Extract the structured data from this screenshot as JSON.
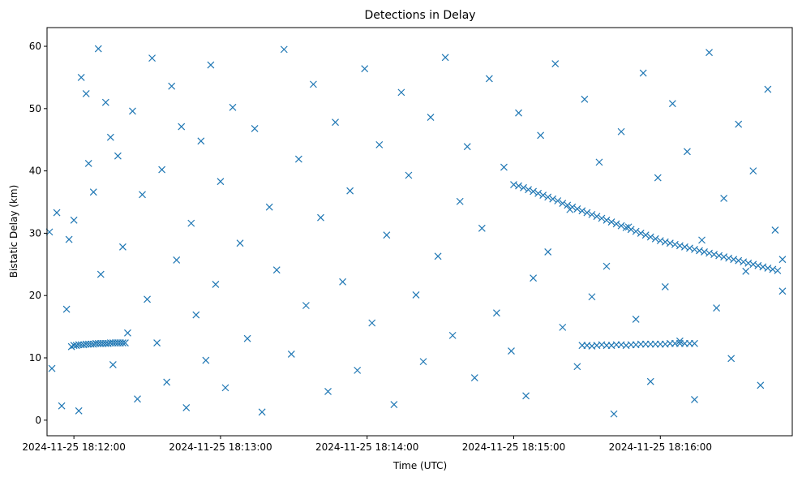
{
  "chart_data": {
    "type": "scatter",
    "title": "Detections in Delay",
    "xlabel": "Time (UTC)",
    "ylabel": "Bistatic Delay (km)",
    "marker": "x",
    "color": "#1f77b4",
    "grid": false,
    "xlim": [
      "2024-11-25 18:11:49",
      "2024-11-25 18:16:54"
    ],
    "ylim": [
      -2.5,
      63
    ],
    "x_ticks": [
      "2024-11-25 18:12:00",
      "2024-11-25 18:13:00",
      "2024-11-25 18:14:00",
      "2024-11-25 18:15:00",
      "2024-11-25 18:16:00"
    ],
    "x_tick_labels": [
      "2024-11-25 18:12:00",
      "2024-11-25 18:13:00",
      "2024-11-25 18:14:00",
      "2024-11-25 18:15:00",
      "2024-11-25 18:16:00"
    ],
    "y_ticks": [
      0,
      10,
      20,
      30,
      40,
      50,
      60
    ],
    "y_tick_labels": [
      "0",
      "10",
      "20",
      "30",
      "40",
      "50",
      "60"
    ],
    "track_1": {
      "x": [
        "18:15:00",
        "18:15:02",
        "18:15:04",
        "18:15:06",
        "18:15:08",
        "18:15:10",
        "18:15:12",
        "18:15:14",
        "18:15:16",
        "18:15:18",
        "18:15:20",
        "18:15:22",
        "18:15:24",
        "18:15:26",
        "18:15:28",
        "18:15:30",
        "18:15:32",
        "18:15:34",
        "18:15:36",
        "18:15:38",
        "18:15:40",
        "18:15:42",
        "18:15:44",
        "18:15:46",
        "18:15:48",
        "18:15:50",
        "18:15:52",
        "18:15:54",
        "18:15:56",
        "18:15:58",
        "18:16:00",
        "18:16:02",
        "18:16:04",
        "18:16:06",
        "18:16:08",
        "18:16:10",
        "18:16:12",
        "18:16:14",
        "18:16:16",
        "18:16:18",
        "18:16:20",
        "18:16:22",
        "18:16:24",
        "18:16:26",
        "18:16:28",
        "18:16:30",
        "18:16:32",
        "18:16:34",
        "18:16:36",
        "18:16:38",
        "18:16:40",
        "18:16:42",
        "18:16:44",
        "18:16:46",
        "18:16:48",
        "18:16:50"
      ],
      "y": [
        37.8,
        37.6,
        37.3,
        37.0,
        36.7,
        36.4,
        36.1,
        35.8,
        35.5,
        35.2,
        34.8,
        34.5,
        34.2,
        33.9,
        33.6,
        33.3,
        33.0,
        32.7,
        32.4,
        32.1,
        31.8,
        31.5,
        31.2,
        30.9,
        30.6,
        30.3,
        30.0,
        29.7,
        29.4,
        29.1,
        28.8,
        28.6,
        28.4,
        28.2,
        28.0,
        27.8,
        27.6,
        27.4,
        27.2,
        27.0,
        26.8,
        26.6,
        26.4,
        26.2,
        26.0,
        25.8,
        25.6,
        25.4,
        25.2,
        25.0,
        24.8,
        24.6,
        24.4,
        24.2,
        24.0,
        25.8
      ]
    },
    "track_2": {
      "x": [
        "18:11:59",
        "18:12:00",
        "18:12:01",
        "18:12:02",
        "18:12:03",
        "18:12:04",
        "18:12:05",
        "18:12:06",
        "18:12:07",
        "18:12:08",
        "18:12:09",
        "18:12:10",
        "18:12:11",
        "18:12:12",
        "18:12:13",
        "18:12:14",
        "18:12:15",
        "18:12:16",
        "18:12:17",
        "18:12:18",
        "18:12:19",
        "18:12:20",
        "18:12:21"
      ],
      "y": [
        11.8,
        12.0,
        12.0,
        12.1,
        12.1,
        12.1,
        12.2,
        12.2,
        12.2,
        12.2,
        12.3,
        12.3,
        12.3,
        12.3,
        12.3,
        12.3,
        12.4,
        12.4,
        12.4,
        12.4,
        12.4,
        12.4,
        12.4
      ]
    },
    "track_3": {
      "x": [
        "18:15:28",
        "18:15:30",
        "18:15:32",
        "18:15:34",
        "18:15:36",
        "18:15:38",
        "18:15:40",
        "18:15:42",
        "18:15:44",
        "18:15:46",
        "18:15:48",
        "18:15:50",
        "18:15:52",
        "18:15:54",
        "18:15:56",
        "18:15:58",
        "18:16:00",
        "18:16:02",
        "18:16:04",
        "18:16:06",
        "18:16:08",
        "18:16:10",
        "18:16:12",
        "18:16:14"
      ],
      "y": [
        12.0,
        12.0,
        11.9,
        12.0,
        12.1,
        12.0,
        12.0,
        12.1,
        12.1,
        12.0,
        12.1,
        12.1,
        12.2,
        12.2,
        12.2,
        12.2,
        12.2,
        12.2,
        12.3,
        12.3,
        12.3,
        12.3,
        12.3,
        12.3
      ]
    },
    "scattered_detections": {
      "x": [
        "18:11:50",
        "18:11:51",
        "18:11:53",
        "18:11:55",
        "18:11:57",
        "18:11:58",
        "18:12:00",
        "18:12:02",
        "18:12:03",
        "18:12:05",
        "18:12:06",
        "18:12:08",
        "18:12:10",
        "18:12:11",
        "18:12:13",
        "18:12:15",
        "18:12:16",
        "18:12:18",
        "18:12:20",
        "18:12:22",
        "18:12:24",
        "18:12:26",
        "18:12:28",
        "18:12:30",
        "18:12:32",
        "18:12:34",
        "18:12:36",
        "18:12:38",
        "18:12:40",
        "18:12:42",
        "18:12:44",
        "18:12:46",
        "18:12:48",
        "18:12:50",
        "18:12:52",
        "18:12:54",
        "18:12:56",
        "18:12:58",
        "18:13:00",
        "18:13:02",
        "18:13:05",
        "18:13:08",
        "18:13:11",
        "18:13:14",
        "18:13:17",
        "18:13:20",
        "18:13:23",
        "18:13:26",
        "18:13:29",
        "18:13:32",
        "18:13:35",
        "18:13:38",
        "18:13:41",
        "18:13:44",
        "18:13:47",
        "18:13:50",
        "18:13:53",
        "18:13:56",
        "18:13:59",
        "18:14:02",
        "18:14:05",
        "18:14:08",
        "18:14:11",
        "18:14:14",
        "18:14:17",
        "18:14:20",
        "18:14:23",
        "18:14:26",
        "18:14:29",
        "18:14:32",
        "18:14:35",
        "18:14:38",
        "18:14:41",
        "18:14:44",
        "18:14:47",
        "18:14:50",
        "18:14:53",
        "18:14:56",
        "18:14:59",
        "18:15:02",
        "18:15:05",
        "18:15:08",
        "18:15:11",
        "18:15:14",
        "18:15:17",
        "18:15:20",
        "18:15:23",
        "18:15:26",
        "18:15:29",
        "18:15:32",
        "18:15:35",
        "18:15:38",
        "18:15:41",
        "18:15:44",
        "18:15:47",
        "18:15:50",
        "18:15:53",
        "18:15:56",
        "18:15:59",
        "18:16:02",
        "18:16:05",
        "18:16:08",
        "18:16:11",
        "18:16:14",
        "18:16:17",
        "18:16:20",
        "18:16:23",
        "18:16:26",
        "18:16:29",
        "18:16:32",
        "18:16:35",
        "18:16:38",
        "18:16:41",
        "18:16:44",
        "18:16:47",
        "18:16:50"
      ],
      "y": [
        30.2,
        8.3,
        33.3,
        2.3,
        17.8,
        29.0,
        32.1,
        1.5,
        55.0,
        52.4,
        41.2,
        36.6,
        59.6,
        23.4,
        51.0,
        45.4,
        8.9,
        42.4,
        27.8,
        14.0,
        49.6,
        3.4,
        36.2,
        19.4,
        58.1,
        12.4,
        40.2,
        6.1,
        53.6,
        25.7,
        47.1,
        2.0,
        31.6,
        16.9,
        44.8,
        9.6,
        57.0,
        21.8,
        38.3,
        5.2,
        50.2,
        28.4,
        13.1,
        46.8,
        1.3,
        34.2,
        24.1,
        59.5,
        10.6,
        41.9,
        18.4,
        53.9,
        32.5,
        4.6,
        47.8,
        22.2,
        36.8,
        8.0,
        56.4,
        15.6,
        44.2,
        29.7,
        2.5,
        52.6,
        39.3,
        20.1,
        9.4,
        48.6,
        26.3,
        58.2,
        13.6,
        35.1,
        43.9,
        6.8,
        30.8,
        54.8,
        17.2,
        40.6,
        11.1,
        49.3,
        3.9,
        22.8,
        45.7,
        27.0,
        57.2,
        14.9,
        33.8,
        8.6,
        51.5,
        19.8,
        41.4,
        24.7,
        1.0,
        46.3,
        31.0,
        16.2,
        55.7,
        6.2,
        38.9,
        21.4,
        50.8,
        12.7,
        43.1,
        3.3,
        28.9,
        59.0,
        18.0,
        35.6,
        9.9,
        47.5,
        23.9,
        40.0,
        5.6,
        53.1,
        30.5,
        20.7
      ]
    }
  }
}
